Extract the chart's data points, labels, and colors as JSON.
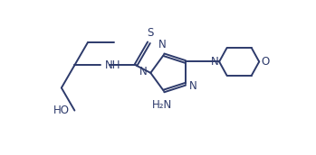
{
  "bg_color": "#ffffff",
  "line_color": "#2d3a6b",
  "text_color": "#2d3a6b",
  "line_width": 1.4,
  "font_size": 8.5,
  "xlim": [
    0,
    10
  ],
  "ylim": [
    0,
    5
  ],
  "figsize": [
    3.49,
    1.72
  ],
  "dpi": 100
}
